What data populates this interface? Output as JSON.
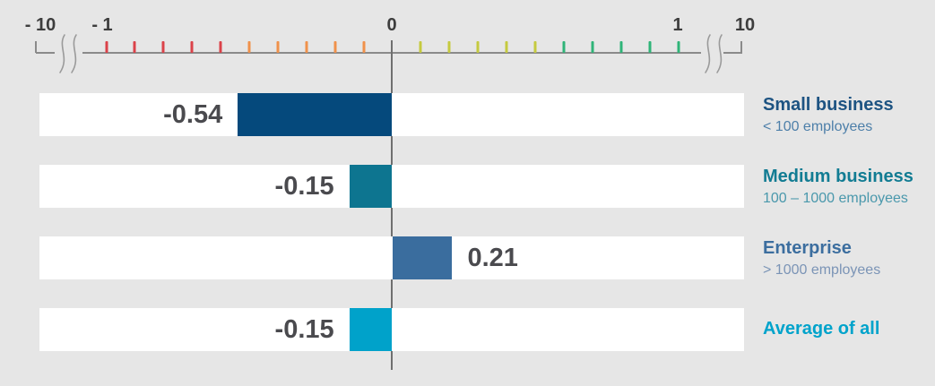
{
  "colors": {
    "background": "#e6e6e6",
    "row_background": "#ffffff",
    "axis_line": "#8a8a8a",
    "zero_line": "#6f6f6f",
    "axis_label_text": "#3d3d3d",
    "value_label_text": "#4a4a4e"
  },
  "chart_data": {
    "type": "bar",
    "orientation": "horizontal",
    "title": "",
    "categories": [
      "Small business",
      "Medium business",
      "Enterprise",
      "Average of all"
    ],
    "subtitles": [
      "< 100 employees",
      "100 – 1000 employees",
      "> 1000 employees",
      ""
    ],
    "values": [
      -0.54,
      -0.15,
      0.21,
      -0.15
    ],
    "value_labels": [
      "-0.54",
      "-0.15",
      "0.21",
      "-0.15"
    ],
    "bar_colors": [
      "#05497c",
      "#0d7590",
      "#3a6d9e",
      "#00a2ca"
    ],
    "axis": {
      "position": "top",
      "tick_labels": [
        "- 10",
        "- 1",
        "0",
        "1",
        "10"
      ],
      "tick_label_values": [
        -10,
        -1,
        0,
        1,
        10
      ],
      "broken_axis": true,
      "break_locations": "between -10 and -1, and between 1 and 10",
      "minor_tick_step": 0.1,
      "minor_tick_range": [
        -1,
        1
      ],
      "tick_band_colors": {
        "neg_outer": "#db4249",
        "neg_inner": "#f0914b",
        "pos_inner": "#c5ca3f",
        "pos_outer": "#2fb478"
      },
      "grid": false
    },
    "legend": false
  },
  "rows": [
    {
      "key": "small-business",
      "title": "Small business",
      "subtitle": "< 100 employees",
      "title_color": "#1d5382",
      "subtitle_color": "#4d7fa9",
      "value_label": "-0.54"
    },
    {
      "key": "medium-business",
      "title": "Medium business",
      "subtitle": "100 – 1000 employees",
      "title_color": "#127c93",
      "subtitle_color": "#4a98ac",
      "value_label": "-0.15"
    },
    {
      "key": "enterprise",
      "title": "Enterprise",
      "subtitle": "> 1000 employees",
      "title_color": "#3c6e9f",
      "subtitle_color": "#7b94b6",
      "value_label": "0.21"
    },
    {
      "key": "average-of-all",
      "title": "Average of all",
      "subtitle": "",
      "title_color": "#00a3cb",
      "subtitle_color": "#00a3cb",
      "value_label": "-0.15"
    }
  ]
}
